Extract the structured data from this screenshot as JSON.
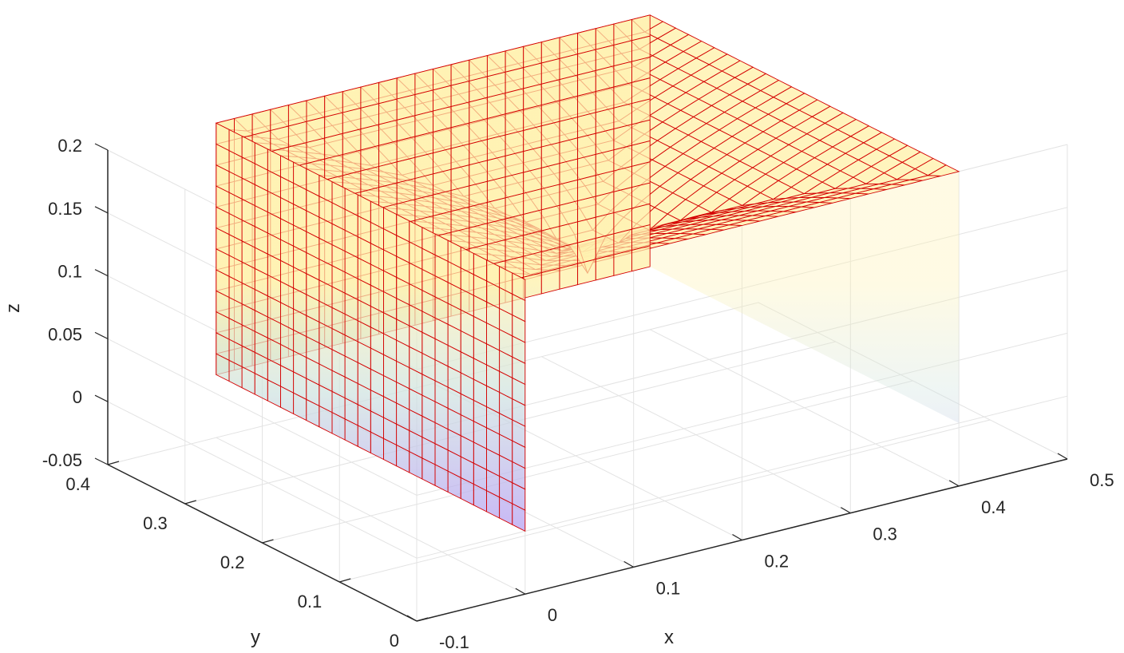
{
  "chart_data": {
    "type": "surface3d",
    "title": "",
    "xlabel": "x",
    "ylabel": "y",
    "zlabel": "z",
    "xlim": [
      -0.1,
      0.5
    ],
    "ylim": [
      0,
      0.4
    ],
    "zlim": [
      -0.05,
      0.2
    ],
    "xticks": [
      "-0.1",
      "0",
      "0.1",
      "0.2",
      "0.3",
      "0.4",
      "0.5"
    ],
    "yticks": [
      "0",
      "0.1",
      "0.2",
      "0.3",
      "0.4"
    ],
    "zticks": [
      "-0.05",
      "0",
      "0.05",
      "0.1",
      "0.15",
      "0.2"
    ],
    "grid": true,
    "box": {
      "x_range": [
        0,
        0.4
      ],
      "y_range": [
        0,
        0.4
      ],
      "z_range": [
        0,
        0.2
      ],
      "top_rim_z": 0.2,
      "top_center_z": 0.1,
      "mesh_divisions": 24
    },
    "colors": {
      "edge": "#d40000",
      "fill_top": "#fff2b0",
      "fill_bottom": "#b39cf2",
      "grid": "#e3e3e3",
      "axis": "#262626"
    }
  }
}
